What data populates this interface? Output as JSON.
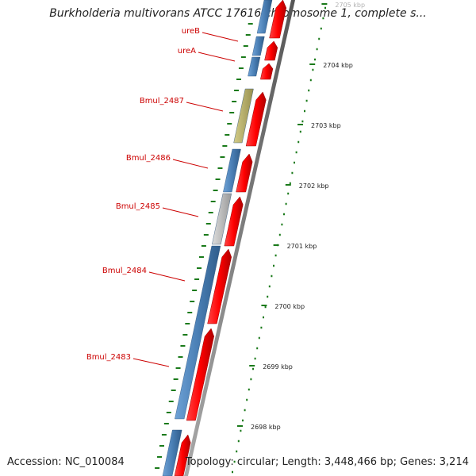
{
  "title": "Burkholderia multivorans ATCC 17616 chromosome 1, complete s...",
  "footer": {
    "accession": "Accession: NC_010084",
    "summary": "Topology: circular; Length: 3,448,466 bp; Genes: 3,214"
  },
  "colors": {
    "forward_strand": "#ff0000",
    "reverse_gene": "#4a7fb5",
    "olive_gene": "#b8b06a",
    "gray_gene": "#bbbbbb",
    "backbone": "#777777",
    "tick": "#1a7a1a",
    "label": "#cc0000"
  },
  "gene_labels": [
    {
      "name": "ureB"
    },
    {
      "name": "ureA"
    },
    {
      "name": "Bmul_2487"
    },
    {
      "name": "Bmul_2486"
    },
    {
      "name": "Bmul_2485"
    },
    {
      "name": "Bmul_2484"
    },
    {
      "name": "Bmul_2483"
    }
  ],
  "kbp_ticks": [
    {
      "label": "2705 kbp"
    },
    {
      "label": "2704 kbp"
    },
    {
      "label": "2703 kbp"
    },
    {
      "label": "2702 kbp"
    },
    {
      "label": "2701 kbp"
    },
    {
      "label": "2700 kbp"
    },
    {
      "label": "2699 kbp"
    },
    {
      "label": "2698 kbp"
    }
  ]
}
